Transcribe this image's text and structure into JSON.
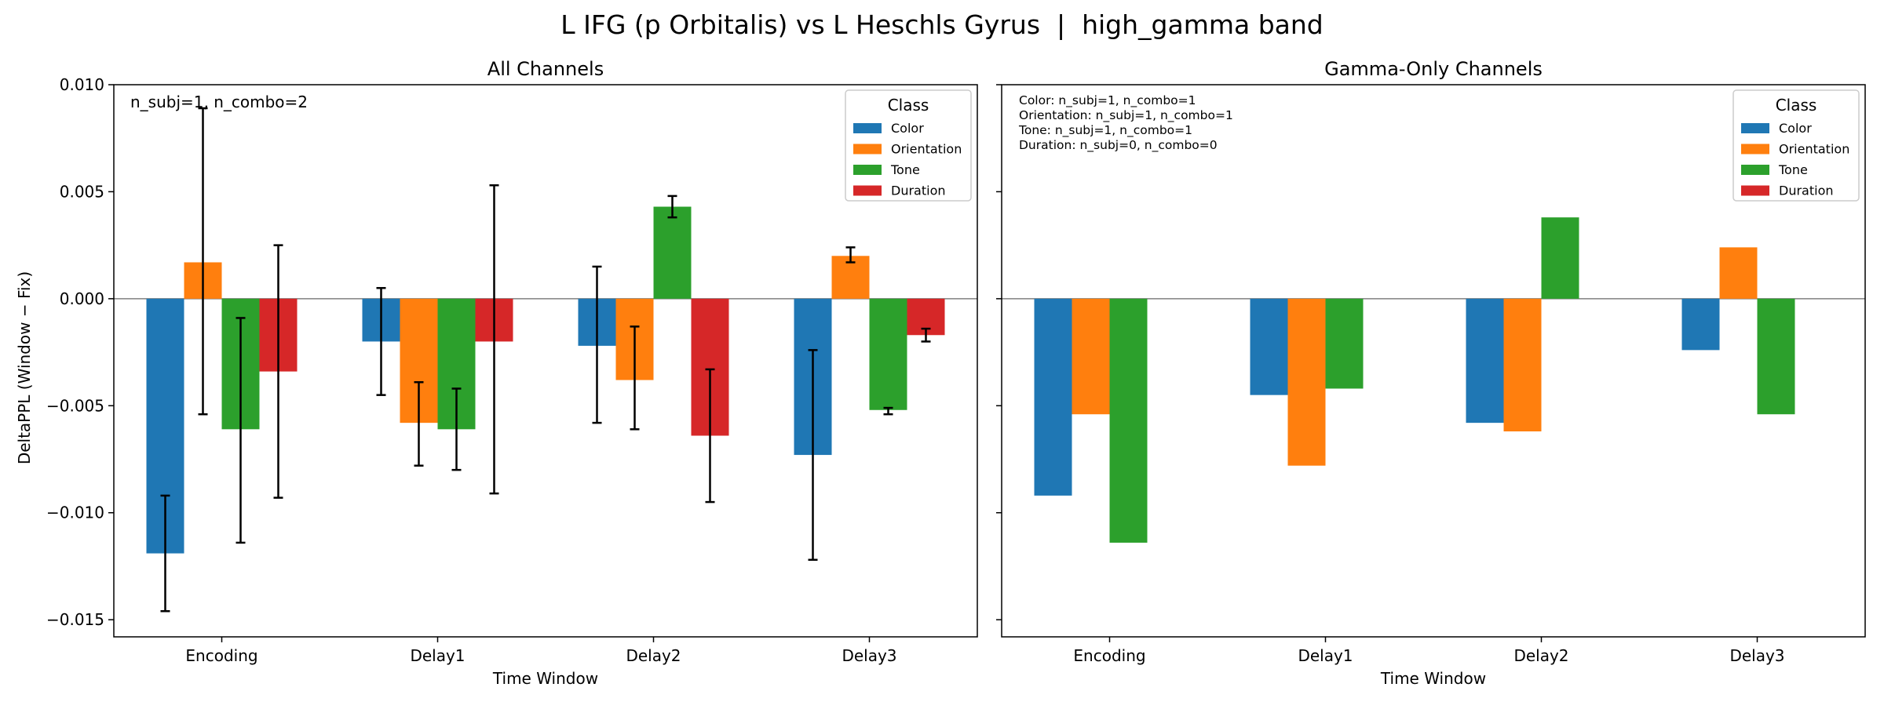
{
  "figure_title": "L IFG (p Orbitalis) vs L Heschls Gyrus  |  high_gamma band",
  "ylabel": "DeltaPPL (Window − Fix)",
  "colors": {
    "Color": "#1f77b4",
    "Orientation": "#ff7f0e",
    "Tone": "#2ca02c",
    "Duration": "#d62728"
  },
  "chart_data": [
    {
      "type": "bar",
      "title": "All Channels",
      "xlabel": "Time Window",
      "ylabel": "DeltaPPL (Window − Fix)",
      "categories": [
        "Encoding",
        "Delay1",
        "Delay2",
        "Delay3"
      ],
      "ylim": [
        -0.0158,
        0.01
      ],
      "yticks": [
        0.01,
        0.005,
        0.0,
        -0.005,
        -0.01,
        -0.015
      ],
      "ytick_labels": [
        "0.010",
        "0.005",
        "0.000",
        "−0.005",
        "−0.010",
        "−0.015"
      ],
      "annotation": [
        "n_subj=1, n_combo=2"
      ],
      "legend": {
        "title": "Class",
        "position": "top-right"
      },
      "series": [
        {
          "name": "Color",
          "values": [
            -0.0119,
            -0.002,
            -0.0022,
            -0.0073
          ],
          "err_low": [
            -0.0146,
            -0.0045,
            -0.0058,
            -0.0122
          ],
          "err_high": [
            -0.0092,
            0.0005,
            0.0015,
            -0.0024
          ]
        },
        {
          "name": "Orientation",
          "values": [
            0.0017,
            -0.0058,
            -0.0038,
            0.002
          ],
          "err_low": [
            -0.0054,
            -0.0078,
            -0.0061,
            0.0017
          ],
          "err_high": [
            0.0089,
            -0.0039,
            -0.0013,
            0.0024
          ]
        },
        {
          "name": "Tone",
          "values": [
            -0.0061,
            -0.0061,
            0.0043,
            -0.0052
          ],
          "err_low": [
            -0.0114,
            -0.008,
            0.0038,
            -0.0054
          ],
          "err_high": [
            -0.0009,
            -0.0042,
            0.0048,
            -0.0051
          ]
        },
        {
          "name": "Duration",
          "values": [
            -0.0034,
            -0.002,
            -0.0064,
            -0.0017
          ],
          "err_low": [
            -0.0093,
            -0.0091,
            -0.0095,
            -0.002
          ],
          "err_high": [
            0.0025,
            0.0053,
            -0.0033,
            -0.0014
          ]
        }
      ]
    },
    {
      "type": "bar",
      "title": "Gamma-Only Channels",
      "xlabel": "Time Window",
      "categories": [
        "Encoding",
        "Delay1",
        "Delay2",
        "Delay3"
      ],
      "ylim": [
        -0.0158,
        0.01
      ],
      "annotation": [
        "Color: n_subj=1, n_combo=1",
        "Orientation: n_subj=1, n_combo=1",
        "Tone: n_subj=1, n_combo=1",
        "Duration: n_subj=0, n_combo=0"
      ],
      "legend": {
        "title": "Class",
        "position": "top-right"
      },
      "series": [
        {
          "name": "Color",
          "values": [
            -0.0092,
            -0.0045,
            -0.0058,
            -0.0024
          ]
        },
        {
          "name": "Orientation",
          "values": [
            -0.0054,
            -0.0078,
            -0.0062,
            0.0024
          ]
        },
        {
          "name": "Tone",
          "values": [
            -0.0114,
            -0.0042,
            0.0038,
            -0.0054
          ]
        },
        {
          "name": "Duration",
          "values": [
            null,
            null,
            null,
            null
          ]
        }
      ]
    }
  ]
}
